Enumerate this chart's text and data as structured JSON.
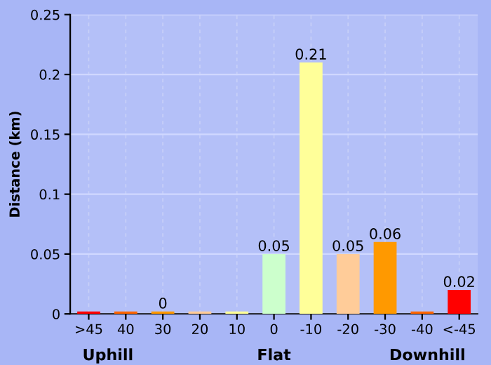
{
  "chart_data": {
    "type": "bar",
    "ylabel": "Distance (km)",
    "categories": [
      ">45",
      "40",
      "30",
      "20",
      "10",
      "0",
      "-10",
      "-20",
      "-30",
      "-40",
      "<-45"
    ],
    "values": [
      0.002,
      0.002,
      0.002,
      0.002,
      0.002,
      0.05,
      0.21,
      0.05,
      0.06,
      0.002,
      0.02
    ],
    "colors": [
      "#ff0000",
      "#ff6600",
      "#ff9900",
      "#ffcc99",
      "#ffff99",
      "#ccffcc",
      "#ffff99",
      "#ffcc99",
      "#ff9900",
      "#ff6600",
      "#ff0000"
    ],
    "value_labels": [
      null,
      null,
      "0",
      null,
      null,
      "0.05",
      "0.21",
      "0.05",
      "0.06",
      null,
      "0.02"
    ],
    "ylim": [
      0,
      0.25
    ],
    "yticks": [
      0,
      0.05,
      0.1,
      0.15,
      0.2,
      0.25
    ],
    "grid": true,
    "annotations": [
      "Uphill",
      "Flat",
      "Downhill"
    ]
  }
}
